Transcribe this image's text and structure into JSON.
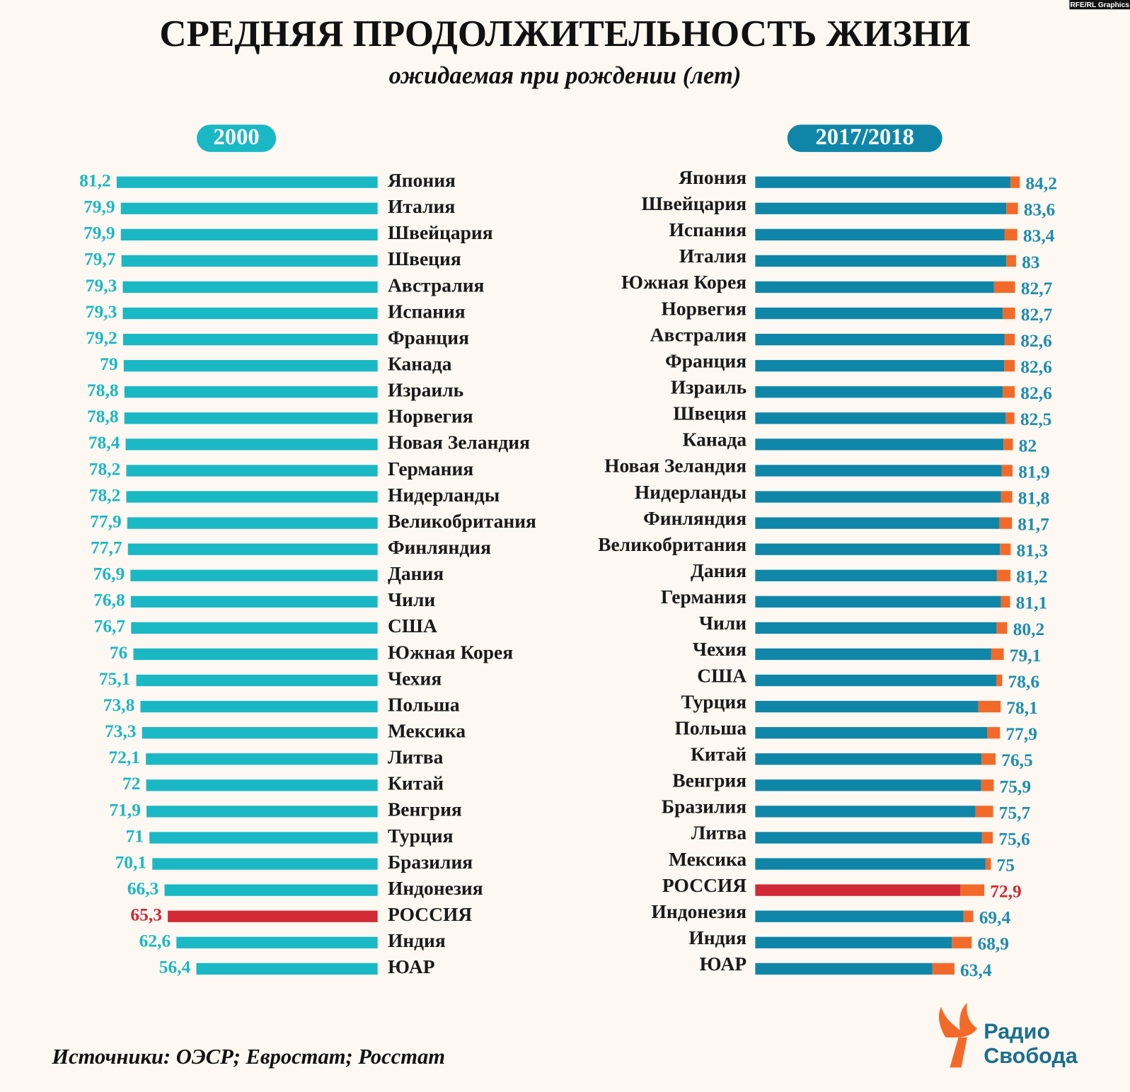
{
  "title": "СРЕДНЯЯ ПРОДОЛЖИТЕЛЬНОСТЬ ЖИЗНИ",
  "subtitle": "ожидаемая при рождении (лет)",
  "source": "Источники: ОЭСР; Евростат; Росстат",
  "credit": "RFE/RL Graphics",
  "logo": [
    "Радио",
    "Свобода"
  ],
  "chart_data": [
    {
      "type": "bar",
      "orientation": "horizontal",
      "title": "2000",
      "title_color": "#1ab8c4",
      "categories": [
        "Япония",
        "Италия",
        "Швейцария",
        "Швеция",
        "Австралия",
        "Испания",
        "Франция",
        "Канада",
        "Израиль",
        "Норвегия",
        "Новая Зеландия",
        "Германия",
        "Нидерланды",
        "Великобритания",
        "Финляндия",
        "Дания",
        "Чили",
        "США",
        "Южная Корея",
        "Чехия",
        "Польша",
        "Мексика",
        "Литва",
        "Китай",
        "Венгрия",
        "Турция",
        "Бразилия",
        "Индонезия",
        "РОССИЯ",
        "Индия",
        "ЮАР"
      ],
      "values": [
        81.2,
        79.9,
        79.9,
        79.7,
        79.3,
        79.3,
        79.2,
        79,
        78.8,
        78.8,
        78.4,
        78.2,
        78.2,
        77.9,
        77.7,
        76.9,
        76.8,
        76.7,
        76,
        75.1,
        73.8,
        73.3,
        72.1,
        72,
        71.9,
        71,
        70.1,
        66.3,
        65.3,
        62.6,
        56.4
      ],
      "value_labels": [
        "81,2",
        "79,9",
        "79,9",
        "79,7",
        "79,3",
        "79,3",
        "79,2",
        "79",
        "78,8",
        "78,8",
        "78,4",
        "78,2",
        "78,2",
        "77,9",
        "77,7",
        "76,9",
        "76,8",
        "76,7",
        "76",
        "75,1",
        "73,8",
        "73,3",
        "72,1",
        "72",
        "71,9",
        "71",
        "70,1",
        "66,3",
        "65,3",
        "62,6",
        "56,4"
      ],
      "colors": [
        "#1ab8c4",
        "#1ab8c4",
        "#1ab8c4",
        "#1ab8c4",
        "#1ab8c4",
        "#1ab8c4",
        "#1ab8c4",
        "#1ab8c4",
        "#1ab8c4",
        "#1ab8c4",
        "#1ab8c4",
        "#1ab8c4",
        "#1ab8c4",
        "#1ab8c4",
        "#1ab8c4",
        "#1ab8c4",
        "#1ab8c4",
        "#1ab8c4",
        "#1ab8c4",
        "#1ab8c4",
        "#1ab8c4",
        "#1ab8c4",
        "#1ab8c4",
        "#1ab8c4",
        "#1ab8c4",
        "#1ab8c4",
        "#1ab8c4",
        "#1ab8c4",
        "#d12a36",
        "#1ab8c4",
        "#1ab8c4"
      ]
    },
    {
      "type": "bar",
      "orientation": "horizontal",
      "title": "2017/2018",
      "title_color": "#0f86a8",
      "increase_color": "#f26a2a",
      "categories": [
        "Япония",
        "Швейцария",
        "Испания",
        "Италия",
        "Южная Корея",
        "Норвегия",
        "Австралия",
        "Франция",
        "Израиль",
        "Швеция",
        "Канада",
        "Новая Зеландия",
        "Нидерланды",
        "Финляндия",
        "Великобритания",
        "Дания",
        "Германия",
        "Чили",
        "Чехия",
        "США",
        "Турция",
        "Польша",
        "Китай",
        "Венгрия",
        "Бразилия",
        "Литва",
        "Мексика",
        "РОССИЯ",
        "Индонезия",
        "Индия",
        "ЮАР"
      ],
      "values": [
        84.2,
        83.6,
        83.4,
        83,
        82.7,
        82.7,
        82.6,
        82.6,
        82.6,
        82.5,
        82,
        81.9,
        81.8,
        81.7,
        81.3,
        81.2,
        81.1,
        80.2,
        79.1,
        78.6,
        78.1,
        77.9,
        76.5,
        75.9,
        75.7,
        75.6,
        75,
        72.9,
        69.4,
        68.9,
        63.4
      ],
      "value_labels": [
        "84,2",
        "83,6",
        "83,4",
        "83",
        "82,7",
        "82,7",
        "82,6",
        "82,6",
        "82,6",
        "82,5",
        "82",
        "81,9",
        "81,8",
        "81,7",
        "81,3",
        "81,2",
        "81,1",
        "80,2",
        "79,1",
        "78,6",
        "78,1",
        "77,9",
        "76,5",
        "75,9",
        "75,7",
        "75,6",
        "75",
        "72,9",
        "69,4",
        "68,9",
        "63,4"
      ],
      "colors": [
        "#0f86a8",
        "#0f86a8",
        "#0f86a8",
        "#0f86a8",
        "#0f86a8",
        "#0f86a8",
        "#0f86a8",
        "#0f86a8",
        "#0f86a8",
        "#0f86a8",
        "#0f86a8",
        "#0f86a8",
        "#0f86a8",
        "#0f86a8",
        "#0f86a8",
        "#0f86a8",
        "#0f86a8",
        "#0f86a8",
        "#0f86a8",
        "#0f86a8",
        "#0f86a8",
        "#0f86a8",
        "#0f86a8",
        "#0f86a8",
        "#0f86a8",
        "#0f86a8",
        "#0f86a8",
        "#d12a36",
        "#0f86a8",
        "#0f86a8",
        "#0f86a8"
      ]
    }
  ]
}
